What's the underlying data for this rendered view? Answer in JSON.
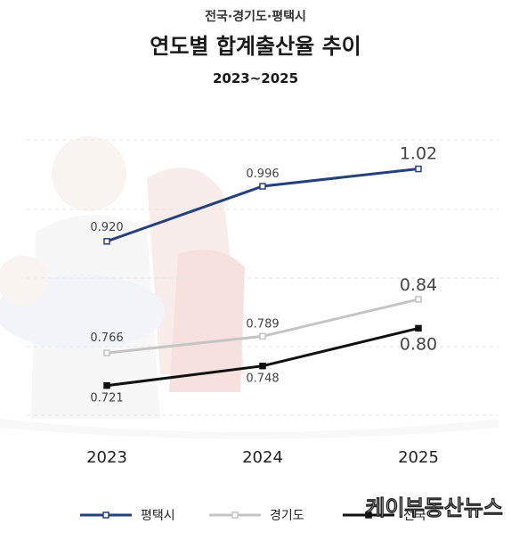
{
  "header": {
    "subtitle": "전국·경기도·평택시",
    "title": "연도별 합계출산율 추이",
    "range": "2023~2025"
  },
  "watermark": "케이부동산뉴스",
  "chart_data": {
    "type": "line",
    "title": "연도별 합계출산율 추이",
    "categories": [
      "2023",
      "2024",
      "2025"
    ],
    "ylim": [
      0.68,
      1.06
    ],
    "grid": true,
    "legend_position": "bottom",
    "series": [
      {
        "name": "평택시",
        "color": "#24417e",
        "values": [
          0.92,
          0.996,
          1.02
        ],
        "labels": [
          "0.920",
          "0.996",
          "1.02"
        ]
      },
      {
        "name": "경기도",
        "color": "#c4c4c4",
        "values": [
          0.766,
          0.789,
          0.84
        ],
        "labels": [
          "0.766",
          "0.789",
          "0.84"
        ]
      },
      {
        "name": "전국",
        "color": "#111111",
        "values": [
          0.721,
          0.748,
          0.8
        ],
        "labels": [
          "0.721",
          "0.748",
          "0.80"
        ]
      }
    ]
  }
}
